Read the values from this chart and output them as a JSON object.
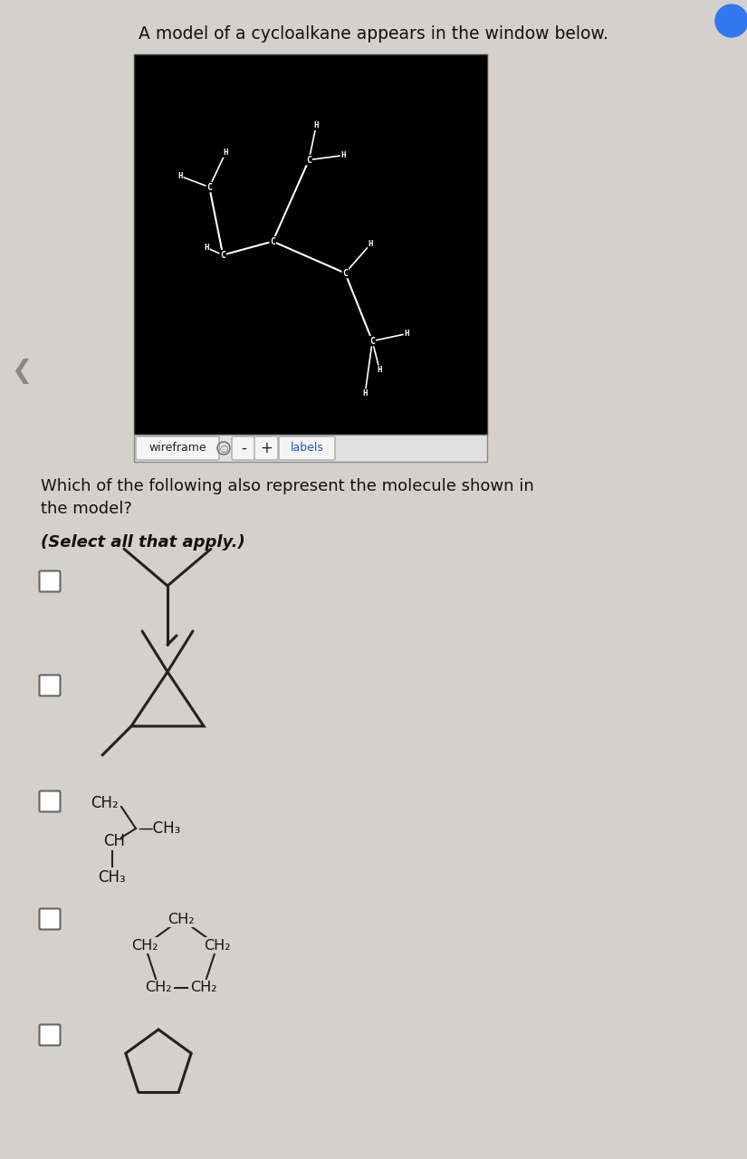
{
  "bg_color": "#d4d1cc",
  "title_text": "A model of a cycloalkane appears in the window below.",
  "title_fontsize": 13.5,
  "question_text": "Which of the following also represent the molecule shown in\nthe model?",
  "select_text": "(Select all that apply.)",
  "wireframe_label": "wireframe",
  "labels_label": "labels",
  "molecule_bg": "#000000",
  "molecule_line_color": "#ffffff"
}
